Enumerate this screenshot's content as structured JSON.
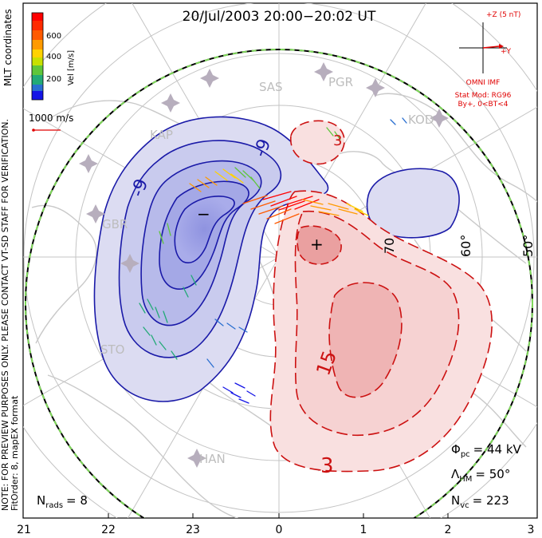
{
  "title": "20/Jul/2003 20:00−20:02 UT",
  "velocity_legend": {
    "label": "Vel [m/s]",
    "ticks": [
      "600",
      "400",
      "200"
    ],
    "colors": [
      "#ff0000",
      "#ff5a00",
      "#ff9a00",
      "#ffd200",
      "#c8e000",
      "#5fc63a",
      "#22aa77",
      "#2a6fd0",
      "#1414e6"
    ]
  },
  "coordinates_label": "MLT coordinates",
  "reference_vector": {
    "label": "1000 m/s",
    "color": "#e00000"
  },
  "imf": {
    "z_label": "+Z (5 nT)",
    "y_label": "+Y",
    "source": "OMNI IMF",
    "model": "Stat Mod: RG96",
    "condition": "By+, 0<BT<4",
    "color": "#e00000"
  },
  "note_lines": [
    "NOTE: FOR PREVIEW PURPOSES ONLY. PLEASE CONTACT VT-SD STAFF FOR VERIFICATION.",
    "FitOrder: 8, mapEX format"
  ],
  "stations": [
    "SAS",
    "PGR",
    "KOD",
    "KAP",
    "GBR",
    "STO",
    "HAN"
  ],
  "contour_labels": {
    "neg": [
      "-9",
      "-9"
    ],
    "pos": [
      "3",
      "15",
      "3"
    ],
    "min_marker": "−",
    "max_marker": "+"
  },
  "latitude_labels": [
    "70",
    "60°",
    "50°"
  ],
  "mlt_ticks": [
    "21",
    "22",
    "23",
    "0",
    "1",
    "2",
    "3"
  ],
  "stats": {
    "phi_pc": {
      "symbol": "Φ",
      "sub": "pc",
      "value": "= 44 kV"
    },
    "lambda_hm": {
      "symbol": "Λ",
      "sub": "HM",
      "value": "= 50°"
    },
    "n_vc": {
      "symbol": "N",
      "sub": "vc",
      "value": "= 223"
    },
    "n_rads": {
      "symbol": "N",
      "sub": "rads",
      "value": "= 8"
    }
  },
  "colors": {
    "neg_contour": "#1a1aa8",
    "pos_contour": "#cc1111",
    "neg_fill": "#c9cbee",
    "pos_fill": "#f6d2d2",
    "grid": "#bdbdbd",
    "boundary": "#7fd85a"
  }
}
